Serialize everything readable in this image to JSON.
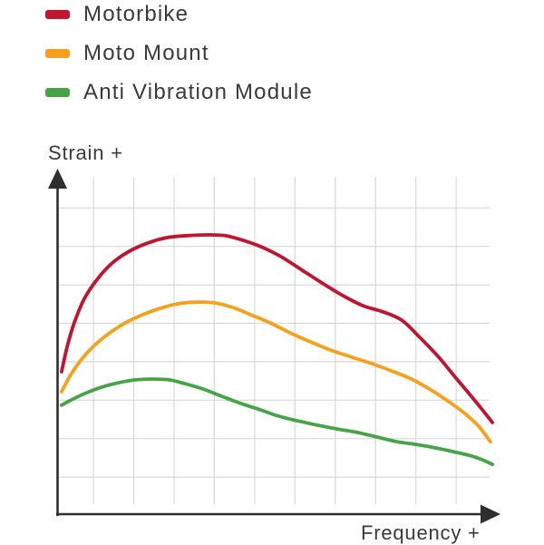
{
  "page": {
    "background": "#ffffff"
  },
  "legend": {
    "items": [
      {
        "key": "motorbike",
        "label": "Motorbike",
        "color": "#c1142e"
      },
      {
        "key": "moto-mount",
        "label": "Moto Mount",
        "color": "#f5a11e"
      },
      {
        "key": "anti-vibration-module",
        "label": "Anti Vibration Module",
        "color": "#45a546"
      }
    ]
  },
  "axes": {
    "y_label": "Strain +",
    "x_label": "Frequency +"
  },
  "style": {
    "grid_color": "#d8d8d8",
    "axis_color": "#2e2e2e",
    "text_color": "#3a3a3a",
    "curve_width": 3.8
  },
  "chart_data": {
    "type": "line",
    "title": "",
    "xlabel": "Frequency +",
    "ylabel": "Strain +",
    "x_range": [
      0,
      10.9
    ],
    "y_range": [
      0,
      8.8
    ],
    "grid": true,
    "gridlines": {
      "x_count": 10,
      "y_count": 8
    },
    "legend_position": "top-left above chart",
    "axis_arrows": true,
    "tick_labels": "none (qualitative axes)",
    "units_note": "x and y are in grid-cell units; x=0 at y-axis, y=0 at x-axis",
    "series": [
      {
        "name": "Motorbike",
        "color": "#c1142e",
        "points": [
          [
            0.21,
            3.74
          ],
          [
            0.35,
            4.4
          ],
          [
            0.53,
            5.03
          ],
          [
            0.77,
            5.63
          ],
          [
            1.09,
            6.14
          ],
          [
            1.47,
            6.57
          ],
          [
            1.9,
            6.88
          ],
          [
            2.35,
            7.09
          ],
          [
            2.84,
            7.23
          ],
          [
            3.34,
            7.28
          ],
          [
            3.81,
            7.3
          ],
          [
            4.26,
            7.28
          ],
          [
            4.71,
            7.16
          ],
          [
            5.16,
            6.99
          ],
          [
            5.66,
            6.73
          ],
          [
            6.15,
            6.4
          ],
          [
            6.67,
            6.05
          ],
          [
            7.19,
            5.72
          ],
          [
            7.68,
            5.46
          ],
          [
            8.18,
            5.3
          ],
          [
            8.65,
            5.08
          ],
          [
            9.1,
            4.63
          ],
          [
            9.55,
            4.14
          ],
          [
            10.0,
            3.57
          ],
          [
            10.45,
            3.01
          ],
          [
            10.9,
            2.42
          ]
        ]
      },
      {
        "name": "Moto Mount",
        "color": "#f5a11e",
        "points": [
          [
            0.21,
            3.22
          ],
          [
            0.44,
            3.67
          ],
          [
            0.71,
            4.07
          ],
          [
            1.02,
            4.42
          ],
          [
            1.38,
            4.73
          ],
          [
            1.79,
            5.01
          ],
          [
            2.21,
            5.22
          ],
          [
            2.66,
            5.39
          ],
          [
            3.11,
            5.51
          ],
          [
            3.56,
            5.55
          ],
          [
            4.01,
            5.53
          ],
          [
            4.46,
            5.41
          ],
          [
            4.91,
            5.22
          ],
          [
            5.39,
            5.01
          ],
          [
            5.88,
            4.75
          ],
          [
            6.38,
            4.52
          ],
          [
            6.89,
            4.3
          ],
          [
            7.41,
            4.12
          ],
          [
            7.91,
            3.95
          ],
          [
            8.4,
            3.76
          ],
          [
            8.89,
            3.55
          ],
          [
            9.37,
            3.27
          ],
          [
            9.82,
            2.96
          ],
          [
            10.22,
            2.65
          ],
          [
            10.56,
            2.32
          ],
          [
            10.85,
            1.92
          ]
        ]
      },
      {
        "name": "Anti Vibration Module",
        "color": "#45a546",
        "points": [
          [
            0.21,
            2.87
          ],
          [
            0.53,
            3.05
          ],
          [
            0.89,
            3.22
          ],
          [
            1.27,
            3.36
          ],
          [
            1.65,
            3.46
          ],
          [
            2.06,
            3.53
          ],
          [
            2.46,
            3.55
          ],
          [
            2.87,
            3.53
          ],
          [
            3.27,
            3.43
          ],
          [
            3.72,
            3.29
          ],
          [
            4.19,
            3.1
          ],
          [
            4.67,
            2.91
          ],
          [
            5.14,
            2.75
          ],
          [
            5.61,
            2.58
          ],
          [
            6.08,
            2.46
          ],
          [
            6.56,
            2.35
          ],
          [
            7.05,
            2.25
          ],
          [
            7.55,
            2.16
          ],
          [
            8.04,
            2.04
          ],
          [
            8.53,
            1.92
          ],
          [
            9.01,
            1.85
          ],
          [
            9.48,
            1.76
          ],
          [
            9.93,
            1.66
          ],
          [
            10.38,
            1.55
          ],
          [
            10.65,
            1.45
          ],
          [
            10.9,
            1.33
          ]
        ]
      }
    ]
  }
}
